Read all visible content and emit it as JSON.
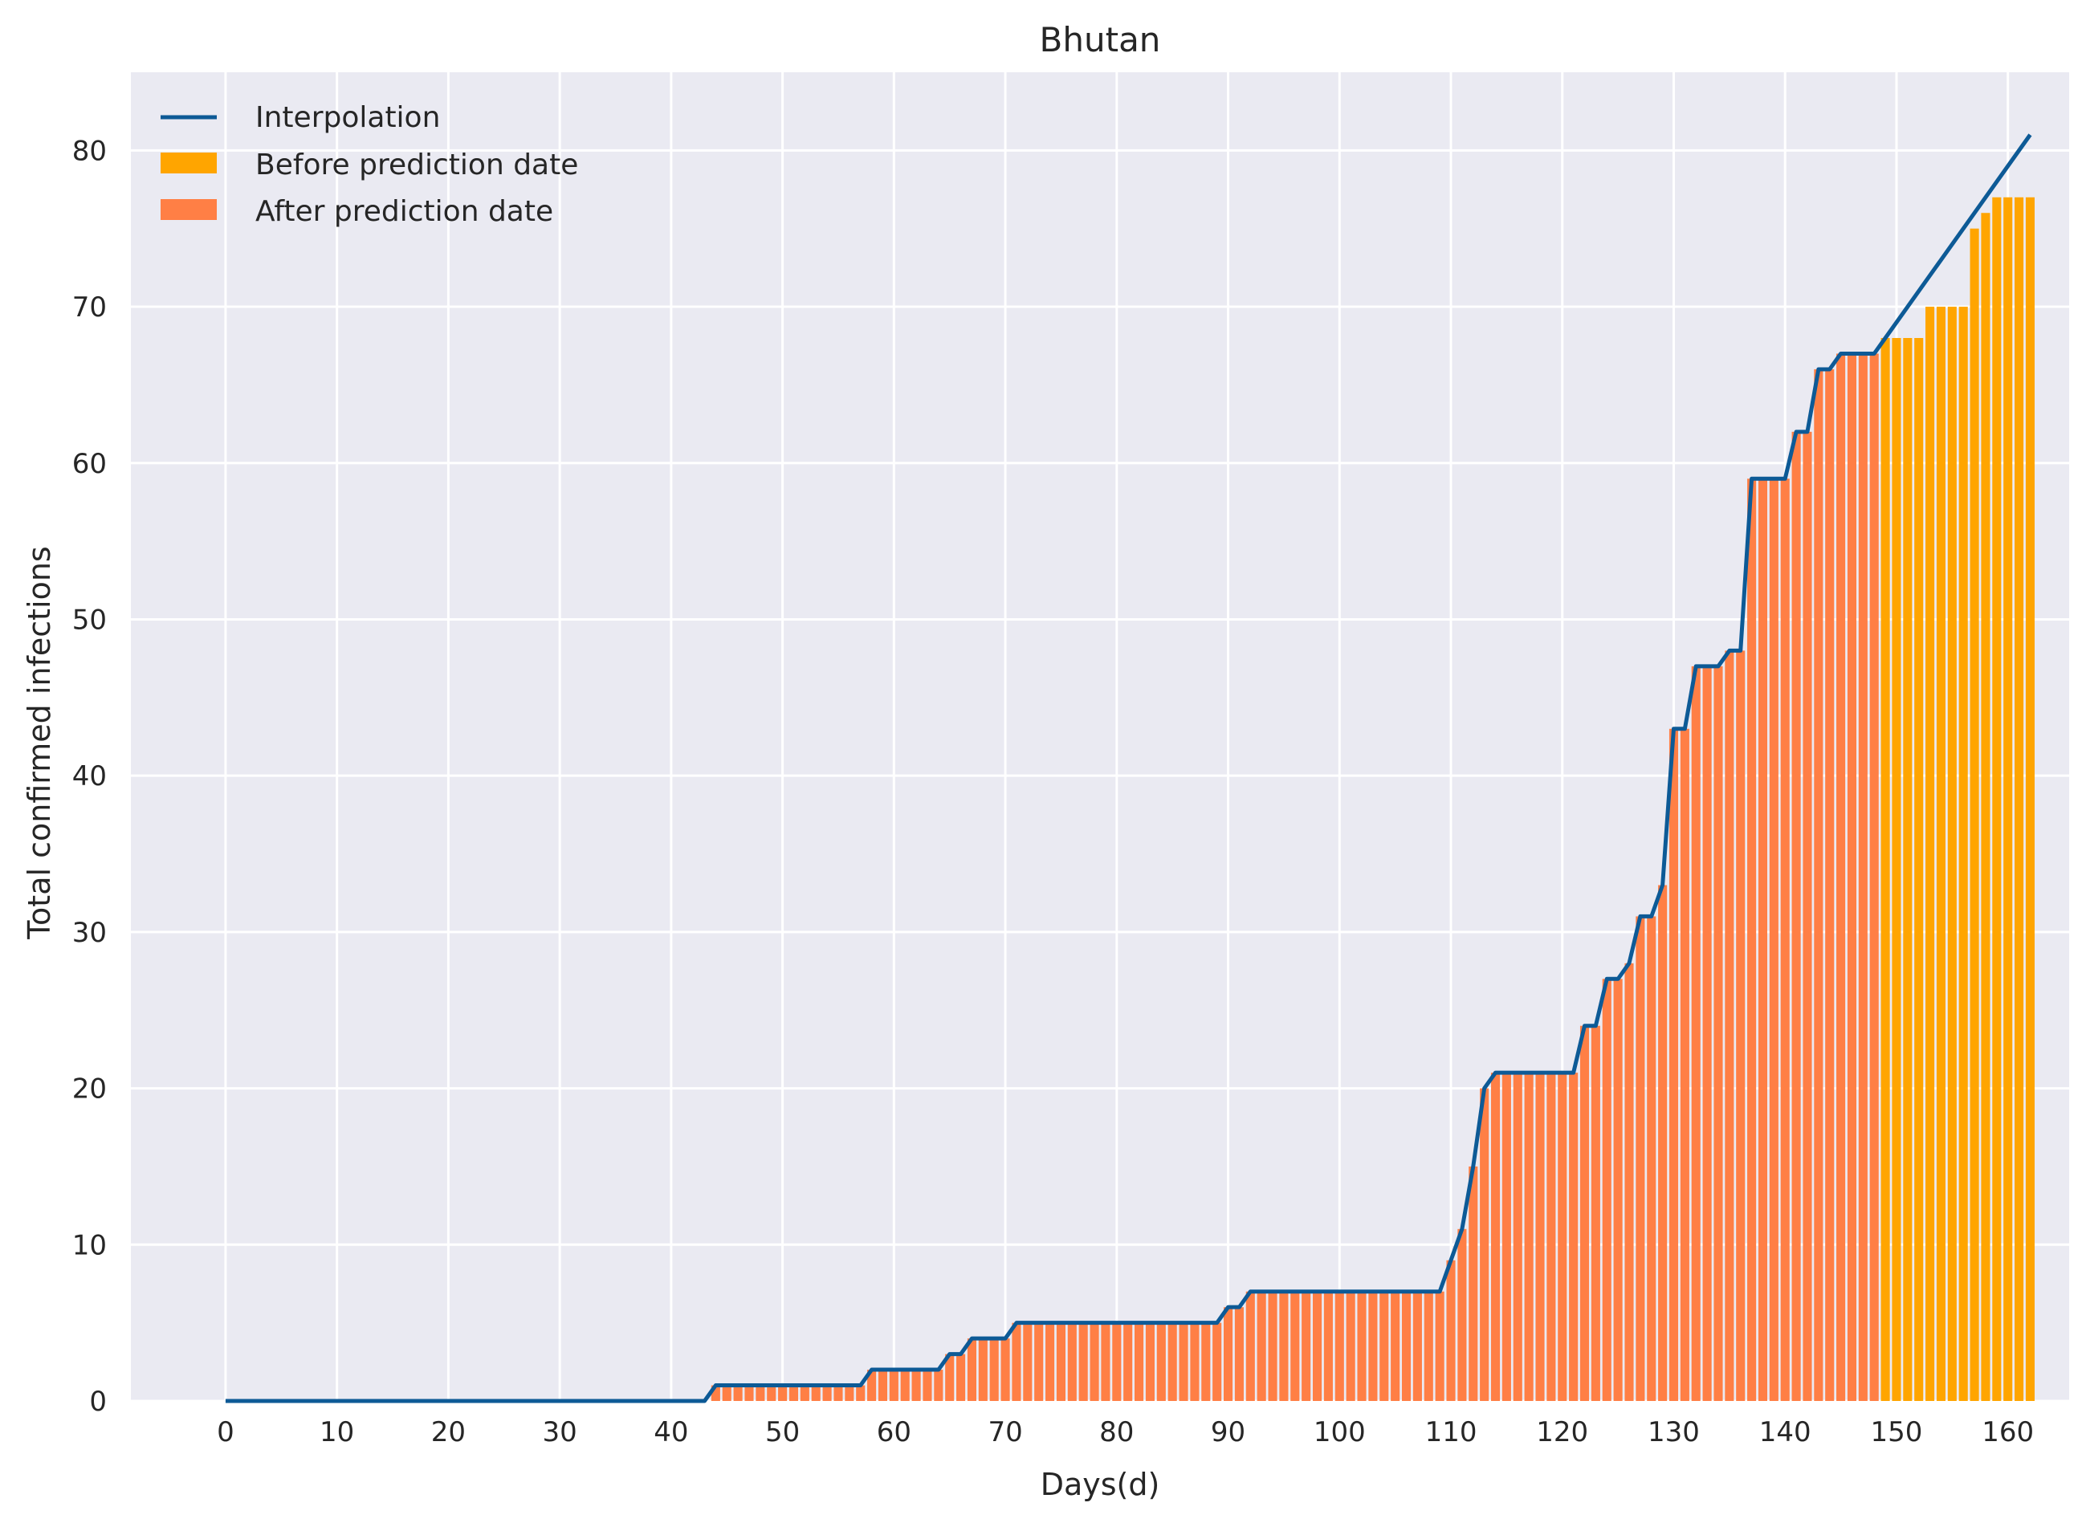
{
  "chart_data": {
    "type": "bar",
    "title": "Bhutan",
    "xlabel": "Days(d)",
    "ylabel": "Total confirmed infections",
    "xlim": [
      -8.5,
      165.5
    ],
    "ylim": [
      0,
      85
    ],
    "xticks": [
      0,
      10,
      20,
      30,
      40,
      50,
      60,
      70,
      80,
      90,
      100,
      110,
      120,
      130,
      140,
      150,
      160
    ],
    "yticks": [
      0,
      10,
      20,
      30,
      40,
      50,
      60,
      70,
      80
    ],
    "grid": true,
    "legend_position": "top-left",
    "prediction_start_day": 149,
    "colors": {
      "background": "#eaeaf2",
      "grid": "#ffffff",
      "interpolation": "#0d5a96",
      "before_prediction": "#ffa500",
      "after_prediction": "#ff7f45"
    },
    "series": [
      {
        "name": "Interpolation",
        "kind": "line",
        "x": [
          0,
          43,
          44,
          57,
          58,
          64,
          65,
          66,
          67,
          70,
          71,
          89,
          90,
          91,
          92,
          109,
          110,
          111,
          112,
          113,
          114,
          121,
          122,
          123,
          124,
          125,
          126,
          127,
          128,
          129,
          130,
          131,
          132,
          134,
          135,
          136,
          137,
          140,
          141,
          142,
          143,
          144,
          145,
          148,
          149,
          162
        ],
        "values": [
          0,
          0,
          1,
          1,
          2,
          2,
          3,
          3,
          4,
          4,
          5,
          5,
          6,
          6,
          7,
          7,
          9,
          11,
          15,
          20,
          21,
          21,
          24,
          24,
          27,
          27,
          28,
          31,
          31,
          33,
          43,
          43,
          47,
          47,
          48,
          48,
          59,
          59,
          62,
          62,
          66,
          66,
          67,
          67,
          68,
          81
        ]
      },
      {
        "name": "Before prediction date",
        "kind": "bar",
        "x": [
          149,
          150,
          151,
          152,
          153,
          154,
          155,
          156,
          157,
          158,
          159,
          160,
          161,
          162
        ],
        "values": [
          68,
          68,
          68,
          68,
          70,
          70,
          70,
          70,
          75,
          76,
          77,
          77,
          77,
          77
        ]
      },
      {
        "name": "After prediction date",
        "kind": "bar",
        "x_start": 44,
        "values": [
          1,
          1,
          1,
          1,
          1,
          1,
          1,
          1,
          1,
          1,
          1,
          1,
          1,
          1,
          2,
          2,
          2,
          2,
          2,
          2,
          2,
          3,
          3,
          4,
          4,
          4,
          4,
          5,
          5,
          5,
          5,
          5,
          5,
          5,
          5,
          5,
          5,
          5,
          5,
          5,
          5,
          5,
          5,
          5,
          5,
          5,
          6,
          6,
          7,
          7,
          7,
          7,
          7,
          7,
          7,
          7,
          7,
          7,
          7,
          7,
          7,
          7,
          7,
          7,
          7,
          7,
          9,
          11,
          15,
          20,
          21,
          21,
          21,
          21,
          21,
          21,
          21,
          21,
          24,
          24,
          27,
          27,
          28,
          31,
          31,
          33,
          43,
          43,
          47,
          47,
          47,
          48,
          48,
          59,
          59,
          59,
          59,
          62,
          62,
          66,
          66,
          67,
          67,
          67,
          67
        ]
      }
    ]
  }
}
